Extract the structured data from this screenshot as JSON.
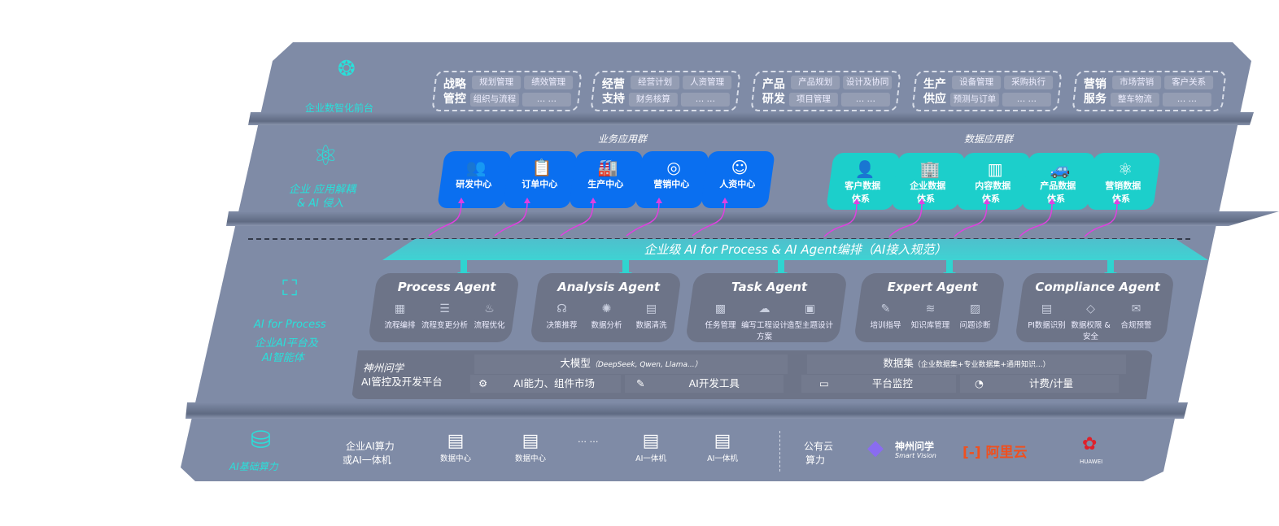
{
  "layers": {
    "frontend": {
      "label": "企业数智化前台",
      "icon": "brain-icon",
      "groups": [
        {
          "title": "战略管控",
          "items": [
            "规划管理",
            "绩效管理",
            "组织与流程",
            "… …"
          ]
        },
        {
          "title": "经营支持",
          "items": [
            "经营计划",
            "人资管理",
            "财务核算",
            "… …"
          ]
        },
        {
          "title": "产品研发",
          "items": [
            "产品规划",
            "设计及协同",
            "项目管理",
            "… …"
          ]
        },
        {
          "title": "生产供应",
          "items": [
            "设备管理",
            "采购执行",
            "预测与订单",
            "… …"
          ]
        },
        {
          "title": "营销服务",
          "items": [
            "市场营销",
            "客户关系",
            "整车物流",
            "… …"
          ]
        }
      ]
    },
    "apps": {
      "label_line1": "企业 应用解耦",
      "label_line2": "& AI 侵入",
      "icon": "molecule-icon",
      "business_title": "业务应用群",
      "business": [
        {
          "label": "研发中心",
          "icon": "users-icon"
        },
        {
          "label": "订单中心",
          "icon": "clipboard-icon"
        },
        {
          "label": "生产中心",
          "icon": "factory-icon"
        },
        {
          "label": "营销中心",
          "icon": "target-icon"
        },
        {
          "label": "人资中心",
          "icon": "person-icon"
        }
      ],
      "data_title": "数据应用群",
      "data": [
        {
          "l1": "客户数据",
          "l2": "体系",
          "icon": "user-icon"
        },
        {
          "l1": "企业数据",
          "l2": "体系",
          "icon": "building-icon"
        },
        {
          "l1": "内容数据",
          "l2": "体系",
          "icon": "books-icon"
        },
        {
          "l1": "产品数据",
          "l2": "体系",
          "icon": "car-icon"
        },
        {
          "l1": "营销数据",
          "l2": "体系",
          "icon": "atom-icon"
        }
      ],
      "accent_blue": "#0a6ff0",
      "accent_teal": "#1ccfcb",
      "connector_color": "#e040e0"
    },
    "orchestration": {
      "label": "企业级 AI for Process & AI Agent编排（AI接入规范）"
    },
    "ai": {
      "label_line1": "AI for Process",
      "label_line2": "企业AI平台及",
      "label_line3": "AI智能体",
      "icon": "face-scan-icon",
      "agents": [
        {
          "title": "Process Agent",
          "items": [
            "流程编排",
            "流程变更分析",
            "流程优化"
          ]
        },
        {
          "title": "Analysis Agent",
          "items": [
            "决策推荐",
            "数据分析",
            "数据清洗"
          ]
        },
        {
          "title": "Task Agent",
          "items": [
            "任务管理",
            "编写工程设计方案",
            "造型主题设计"
          ]
        },
        {
          "title": "Expert Agent",
          "items": [
            "培训指导",
            "知识库管理",
            "问题诊断"
          ]
        },
        {
          "title": "Compliance Agent",
          "items": [
            "PI数据识别",
            "数据权限 & 安全",
            "合规预警"
          ]
        }
      ],
      "platform": {
        "line1": "神州问学",
        "line2": "AI管控及开发平台",
        "model": "大模型",
        "model_note": "（DeepSeek, Qwen, Llama...）",
        "market": "AI能力、组件市场",
        "devtools": "AI开发工具",
        "dataset": "数据集",
        "dataset_note": "（企业数据集+专业数据集+通用知识...）",
        "monitor": "平台监控",
        "billing": "计费/计量"
      }
    },
    "compute": {
      "label": "AI基础算力",
      "icon": "database-icon",
      "private_line1": "企业AI算力",
      "private_line2": "或AI一体机",
      "servers": [
        "数据中心",
        "数据中心",
        "AI一体机",
        "AI一体机"
      ],
      "ellipsis": "… …",
      "public_line1": "公有云",
      "public_line2": "算力",
      "vendors": {
        "shenzhou": "神州问学",
        "shenzhou_sub": "Smart Vision",
        "aliyun": "阿里云",
        "huawei": "HUAWEI"
      }
    }
  }
}
